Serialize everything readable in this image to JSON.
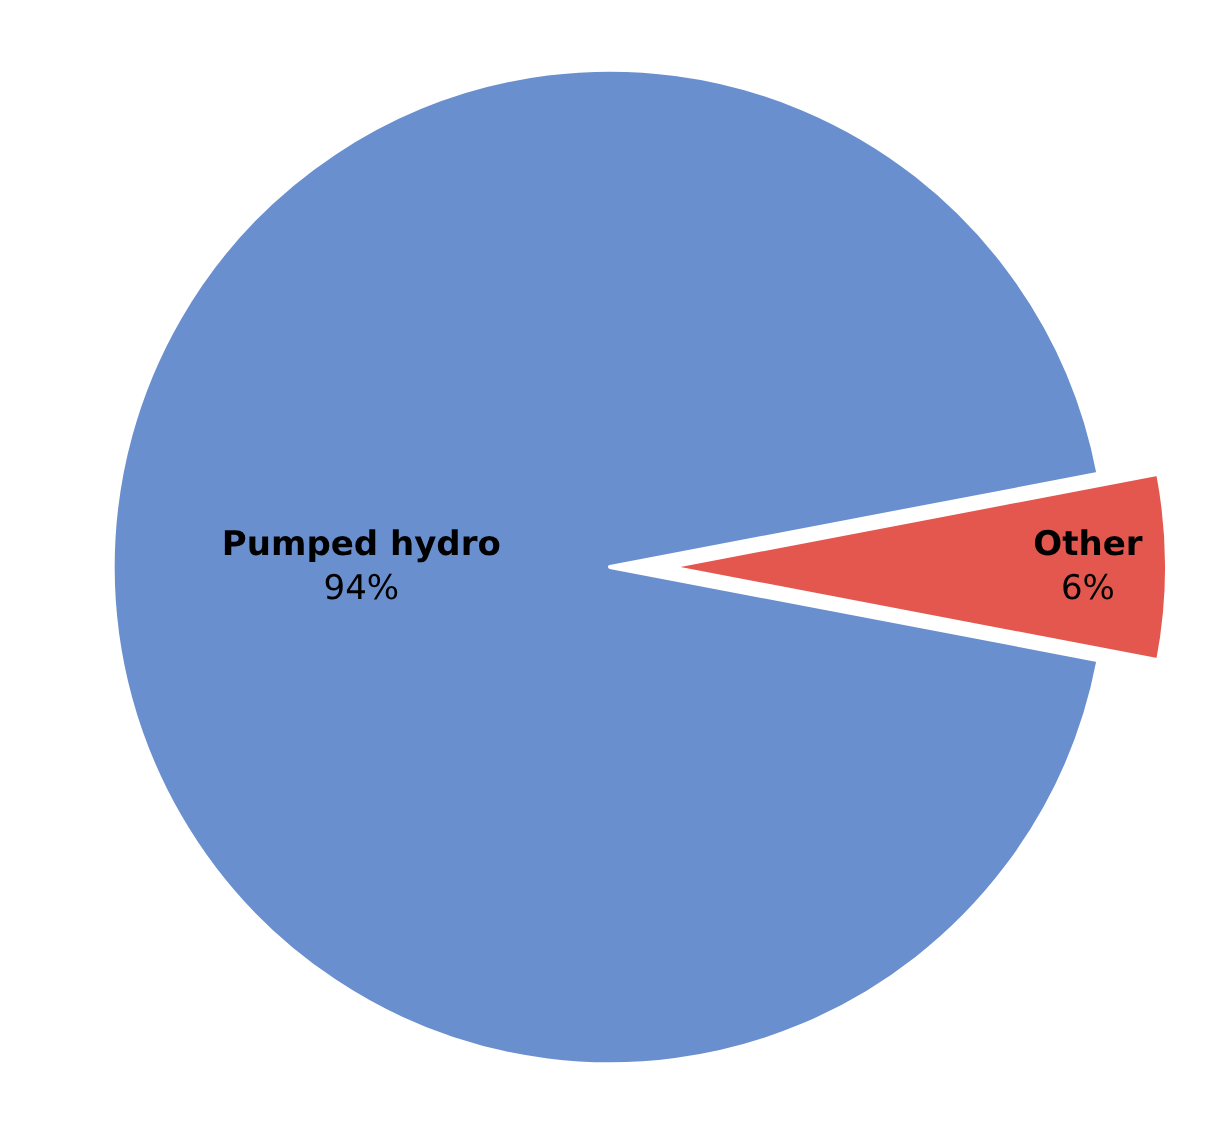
{
  "chart_data": {
    "type": "pie",
    "categories": [
      "Pumped hydro",
      "Other"
    ],
    "values": [
      94,
      6
    ],
    "colors": [
      "#6a8fce",
      "#e4574f"
    ],
    "value_labels": [
      "94%",
      "6%"
    ],
    "legend": false
  }
}
